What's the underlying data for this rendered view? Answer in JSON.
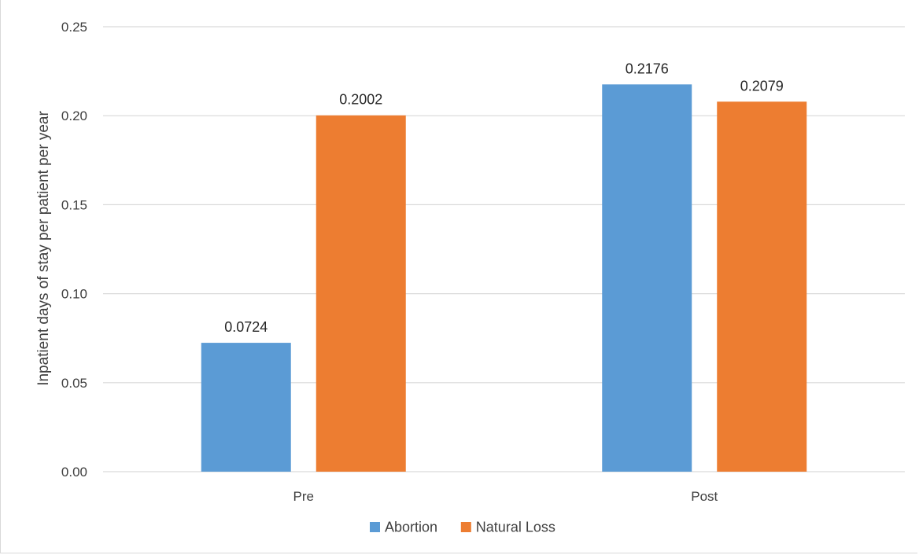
{
  "chart_data": {
    "type": "bar",
    "title": "",
    "xlabel": "",
    "ylabel": "Inpatient days of stay per patient per year",
    "categories": [
      "Pre",
      "Post"
    ],
    "series": [
      {
        "name": "Abortion",
        "color": "#5b9bd5",
        "values": [
          0.0724,
          0.2176
        ],
        "labels": [
          "0.0724",
          "0.2176"
        ]
      },
      {
        "name": "Natural Loss",
        "color": "#ed7d31",
        "values": [
          0.2002,
          0.2079
        ],
        "labels": [
          "0.2002",
          "0.2079"
        ]
      }
    ],
    "ylim": [
      0,
      0.25
    ],
    "yticks": [
      0,
      0.05,
      0.1,
      0.15,
      0.2,
      0.25
    ],
    "ytick_labels": [
      "0.00",
      "0.05",
      "0.10",
      "0.15",
      "0.20",
      "0.25"
    ],
    "grid": true,
    "legend_position": "bottom"
  }
}
